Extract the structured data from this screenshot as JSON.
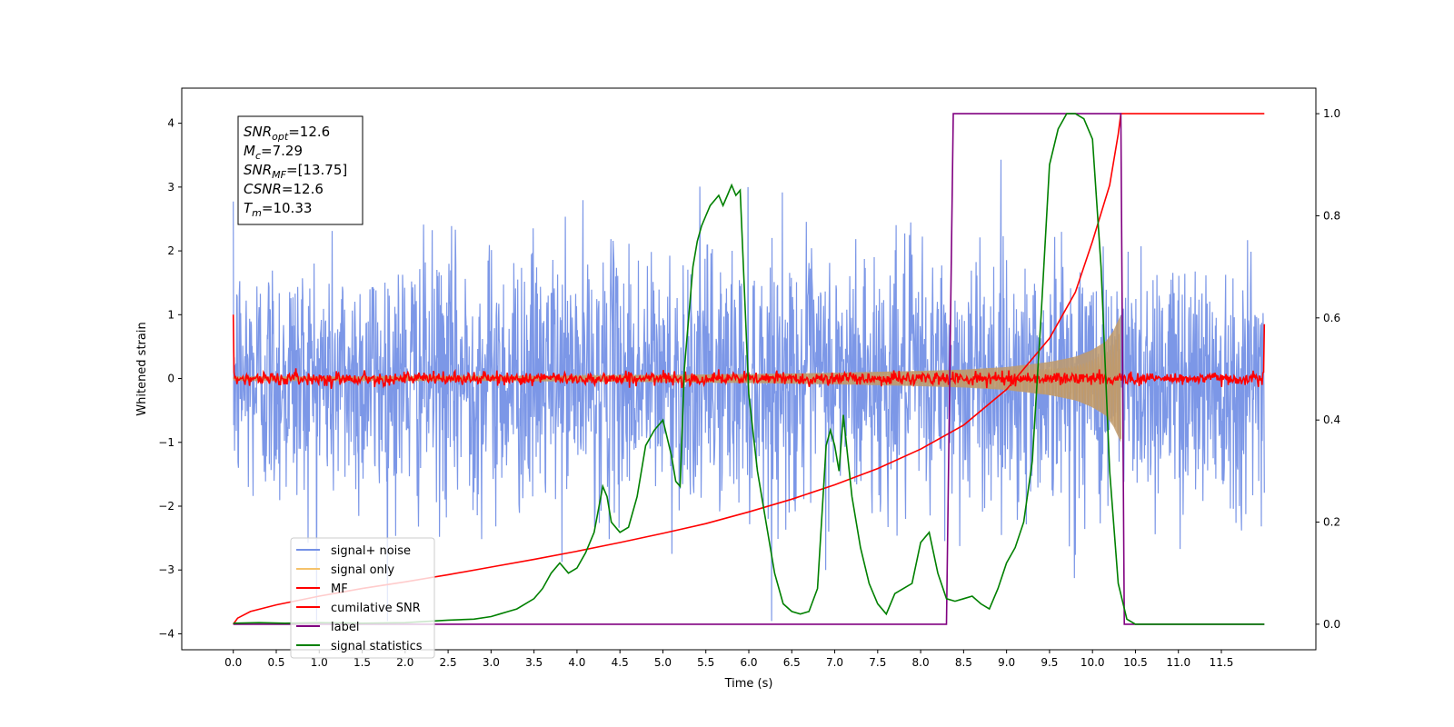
{
  "chart_data": {
    "type": "line",
    "xlabel": "Time (s)",
    "ylabel": "Whitened strain",
    "xlim": [
      -0.6,
      12.6
    ],
    "ylim_left": [
      -4.25,
      4.55
    ],
    "ylim_right": [
      -0.05,
      1.05
    ],
    "x_ticks": [
      0.0,
      0.5,
      1.0,
      1.5,
      2.0,
      2.5,
      3.0,
      3.5,
      4.0,
      4.5,
      5.0,
      5.5,
      6.0,
      6.5,
      7.0,
      7.5,
      8.0,
      8.5,
      9.0,
      9.5,
      10.0,
      10.5,
      11.0,
      11.5
    ],
    "x_tick_labels": [
      "0.0",
      "0.5",
      "1.0",
      "1.5",
      "2.0",
      "2.5",
      "3.0",
      "3.5",
      "4.0",
      "4.5",
      "5.0",
      "5.5",
      "6.0",
      "6.5",
      "7.0",
      "7.5",
      "8.0",
      "8.5",
      "9.0",
      "9.5",
      "10.0",
      "10.5",
      "11.0",
      "11.5"
    ],
    "y_left_ticks": [
      -4,
      -3,
      -2,
      -1,
      0,
      1,
      2,
      3,
      4
    ],
    "y_left_tick_labels": [
      "−4",
      "−3",
      "−2",
      "−1",
      "0",
      "1",
      "2",
      "3",
      "4"
    ],
    "y_right_ticks": [
      0.0,
      0.2,
      0.4,
      0.6,
      0.8,
      1.0
    ],
    "y_right_tick_labels": [
      "0.0",
      "0.2",
      "0.4",
      "0.6",
      "0.8",
      "1.0"
    ],
    "grid": false,
    "legend_position": "lower-left",
    "annotation": {
      "lines": [
        {
          "base": "SNR",
          "sub": "opt",
          "rest": "=12.6"
        },
        {
          "base": "M",
          "sub": "c",
          "rest": "=7.29"
        },
        {
          "base": "SNR",
          "sub": "MF",
          "rest": "=[13.75]"
        },
        {
          "base": "CSNR",
          "sub": "",
          "rest": "=12.6"
        },
        {
          "base": "T",
          "sub": "m",
          "rest": "=10.33"
        }
      ]
    },
    "series": [
      {
        "name": "signal+ noise",
        "color": "#7591e6",
        "axis": "left",
        "description": "noisy strain, roughly within ±3, extremes to ±3.8",
        "x_range": [
          0.0,
          12.0
        ],
        "amplitude_std": 1.0
      },
      {
        "name": "signal only",
        "color": "#f5c26b",
        "axis": "left",
        "envelope": {
          "x": [
            0.0,
            2.0,
            4.0,
            6.0,
            7.0,
            8.0,
            8.5,
            9.0,
            9.5,
            9.8,
            10.0,
            10.2,
            10.33
          ],
          "amp": [
            0.03,
            0.035,
            0.045,
            0.07,
            0.09,
            0.12,
            0.14,
            0.18,
            0.26,
            0.34,
            0.45,
            0.62,
            1.0
          ]
        }
      },
      {
        "name": "MF",
        "color": "#ff0000",
        "axis": "left",
        "description": "matched-filter output near 0 with small fluctuations, spikes at edges",
        "start_value": 1.0,
        "end_value": 0.85,
        "amplitude_std": 0.05
      },
      {
        "name": "cumilative SNR",
        "color": "#ff0000",
        "axis": "right",
        "x": [
          0.0,
          0.05,
          0.2,
          0.5,
          1.0,
          1.5,
          2.0,
          2.5,
          3.0,
          3.5,
          4.0,
          4.5,
          5.0,
          5.5,
          6.0,
          6.5,
          7.0,
          7.5,
          8.0,
          8.5,
          9.0,
          9.5,
          9.8,
          10.0,
          10.2,
          10.3,
          10.33,
          10.5,
          11.0,
          11.5,
          12.0
        ],
        "y": [
          0.0,
          0.012,
          0.025,
          0.038,
          0.055,
          0.07,
          0.083,
          0.097,
          0.112,
          0.127,
          0.143,
          0.16,
          0.178,
          0.197,
          0.22,
          0.245,
          0.273,
          0.305,
          0.343,
          0.39,
          0.46,
          0.56,
          0.65,
          0.75,
          0.86,
          0.96,
          1.0,
          1.0,
          1.0,
          1.0,
          1.0
        ]
      },
      {
        "name": "label",
        "color": "#800080",
        "axis": "right",
        "x": [
          0.0,
          8.3,
          8.38,
          10.33,
          10.37,
          12.0
        ],
        "y": [
          0.0,
          0.0,
          1.0,
          1.0,
          0.0,
          0.0
        ]
      },
      {
        "name": "signal statistics",
        "color": "#008000",
        "axis": "right",
        "x": [
          0.0,
          0.3,
          0.6,
          1.0,
          1.5,
          2.0,
          2.5,
          2.8,
          3.0,
          3.1,
          3.2,
          3.3,
          3.4,
          3.5,
          3.6,
          3.7,
          3.8,
          3.9,
          4.0,
          4.1,
          4.2,
          4.3,
          4.35,
          4.4,
          4.5,
          4.6,
          4.7,
          4.8,
          4.9,
          5.0,
          5.1,
          5.15,
          5.2,
          5.25,
          5.3,
          5.35,
          5.4,
          5.45,
          5.5,
          5.55,
          5.6,
          5.65,
          5.7,
          5.75,
          5.8,
          5.85,
          5.9,
          6.0,
          6.1,
          6.2,
          6.3,
          6.4,
          6.5,
          6.6,
          6.7,
          6.8,
          6.9,
          6.95,
          7.0,
          7.05,
          7.1,
          7.2,
          7.3,
          7.4,
          7.5,
          7.6,
          7.7,
          7.8,
          7.9,
          8.0,
          8.1,
          8.2,
          8.3,
          8.4,
          8.5,
          8.6,
          8.7,
          8.8,
          8.9,
          9.0,
          9.1,
          9.2,
          9.3,
          9.4,
          9.5,
          9.6,
          9.7,
          9.8,
          9.9,
          10.0,
          10.1,
          10.2,
          10.3,
          10.4,
          10.5,
          11.0,
          11.5,
          12.0
        ],
        "y": [
          0.002,
          0.003,
          0.002,
          0.003,
          0.002,
          0.003,
          0.008,
          0.01,
          0.015,
          0.02,
          0.025,
          0.03,
          0.04,
          0.05,
          0.07,
          0.1,
          0.12,
          0.1,
          0.11,
          0.14,
          0.18,
          0.27,
          0.25,
          0.2,
          0.18,
          0.19,
          0.25,
          0.35,
          0.38,
          0.4,
          0.33,
          0.28,
          0.27,
          0.5,
          0.6,
          0.7,
          0.75,
          0.78,
          0.8,
          0.82,
          0.83,
          0.84,
          0.82,
          0.84,
          0.86,
          0.84,
          0.85,
          0.45,
          0.3,
          0.2,
          0.1,
          0.04,
          0.025,
          0.02,
          0.025,
          0.07,
          0.35,
          0.38,
          0.35,
          0.3,
          0.41,
          0.25,
          0.15,
          0.08,
          0.04,
          0.02,
          0.06,
          0.07,
          0.08,
          0.16,
          0.18,
          0.1,
          0.05,
          0.045,
          0.05,
          0.055,
          0.04,
          0.03,
          0.07,
          0.12,
          0.15,
          0.2,
          0.32,
          0.6,
          0.9,
          0.97,
          1.0,
          1.0,
          0.99,
          0.95,
          0.7,
          0.3,
          0.08,
          0.01,
          0.0,
          0.0,
          0.0,
          0.0
        ]
      }
    ]
  }
}
